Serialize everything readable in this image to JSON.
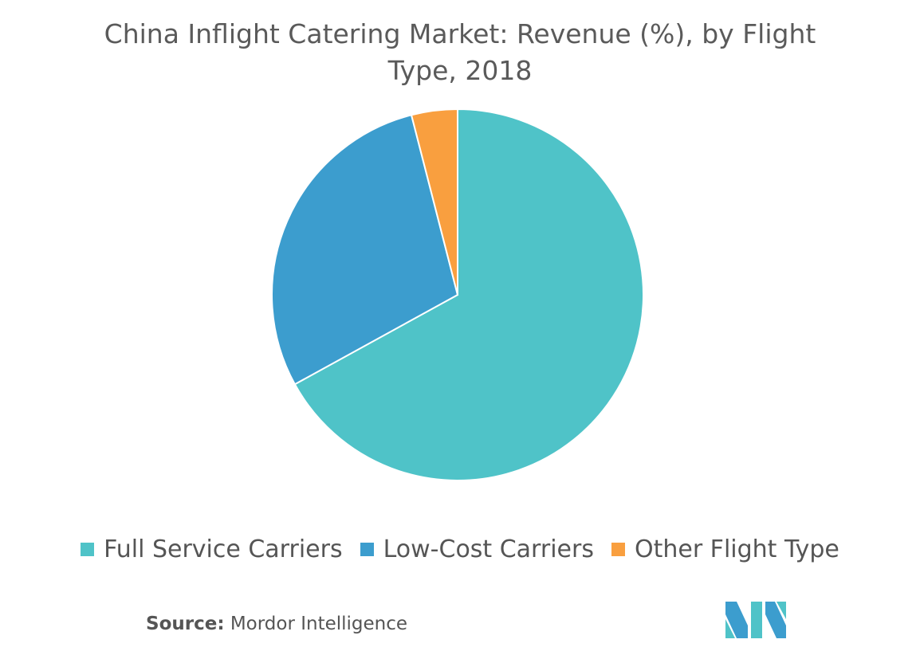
{
  "chart_data": {
    "type": "pie",
    "title": "China Inflight Catering Market: Revenue (%), by Flight Type, 2018",
    "categories": [
      "Full Service Carriers",
      "Low-Cost Carriers",
      "Other Flight Type"
    ],
    "values": [
      67,
      29,
      4
    ],
    "colors": [
      "#4fc3c8",
      "#3c9dce",
      "#f99f3f"
    ],
    "legend": "bottom"
  },
  "source": {
    "label": "Source:",
    "text": "Mordor Intelligence"
  }
}
